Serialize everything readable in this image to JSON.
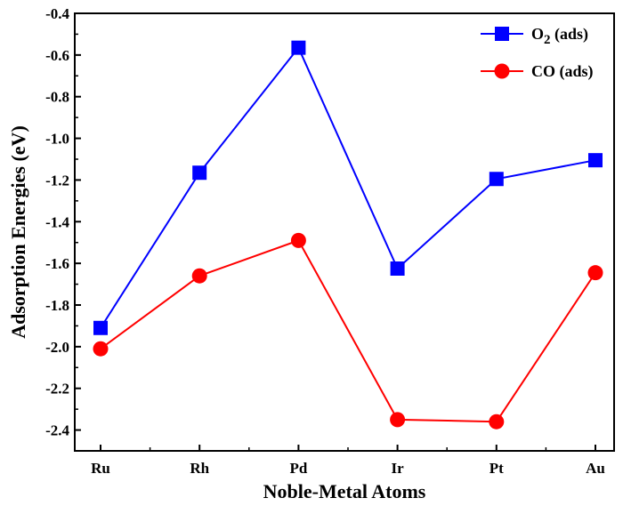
{
  "chart_data": {
    "type": "line",
    "title": "",
    "xlabel": "Noble-Metal Atoms",
    "ylabel": "Adsorption Energies (eV)",
    "categories": [
      "Ru",
      "Rh",
      "Pd",
      "Ir",
      "Pt",
      "Au"
    ],
    "ylim": [
      -2.5,
      -0.4
    ],
    "yticks": [
      -2.4,
      -2.2,
      -2.0,
      -1.8,
      -1.6,
      -1.4,
      -1.2,
      -1.0,
      -0.8,
      -0.6,
      -0.4
    ],
    "ytick_labels": [
      "-2.4",
      "-2.2",
      "-2.0",
      "-1.8",
      "-1.6",
      "-1.4",
      "-1.2",
      "-1.0",
      "-0.8",
      "-0.6",
      "-0.4"
    ],
    "grid": false,
    "legend_position": "top-right",
    "series": [
      {
        "name_main": "O",
        "name_sub": "2",
        "name_rest": " (ads)",
        "marker": "square",
        "color": "#0000ff",
        "values": [
          -1.91,
          -1.165,
          -0.565,
          -1.625,
          -1.195,
          -1.105
        ]
      },
      {
        "name_main": "CO",
        "name_sub": "",
        "name_rest": " (ads)",
        "marker": "circle",
        "color": "#ff0000",
        "values": [
          -2.01,
          -1.66,
          -1.49,
          -2.35,
          -2.36,
          -1.645
        ]
      }
    ]
  }
}
